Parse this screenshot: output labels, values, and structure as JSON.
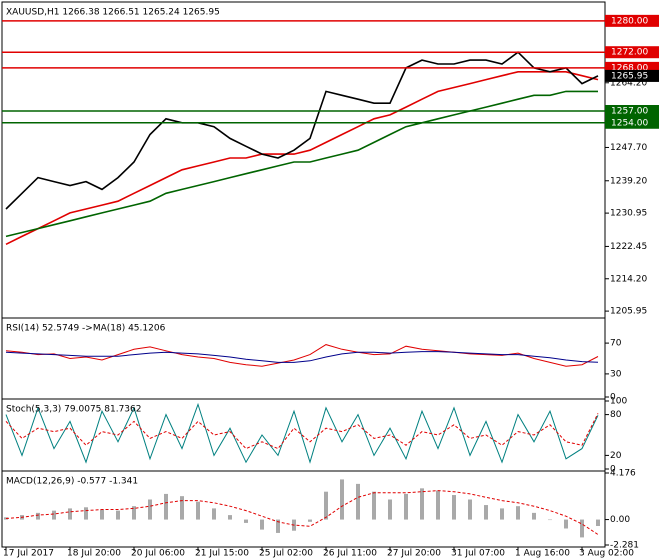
{
  "chart_data": [
    {
      "type": "line",
      "title": "XAUUSD,H1  1266.38 1266.51 1265.24 1265.95",
      "categories": [
        "17 Jul 2017",
        null,
        null,
        null,
        "18 Jul 20:00",
        null,
        null,
        null,
        "20 Jul 06:00",
        null,
        null,
        null,
        "21 Jul 15:00",
        null,
        null,
        null,
        "25 Jul 02:00",
        null,
        null,
        null,
        "26 Jul 11:00",
        null,
        null,
        null,
        "27 Jul 20:00",
        null,
        null,
        null,
        "31 Jul 07:00",
        null,
        null,
        null,
        "1 Aug 16:00",
        null,
        null,
        null,
        "3 Aug 02:00",
        null
      ],
      "series": [
        {
          "color": "#e00000",
          "style": "line",
          "values": [
            1223,
            1225,
            1227,
            1229,
            1231,
            1232,
            1233,
            1234,
            1236,
            1238,
            1240,
            1242,
            1243,
            1244,
            1245,
            1245,
            1246,
            1246,
            1246,
            1247,
            1249,
            1251,
            1253,
            1255,
            1256,
            1258,
            1260,
            1262,
            1263,
            1264,
            1265,
            1266,
            1267,
            1267,
            1267,
            1267,
            1266,
            1265
          ]
        },
        {
          "color": "#006400",
          "style": "line",
          "values": [
            1225,
            1226,
            1227,
            1228,
            1229,
            1230,
            1231,
            1232,
            1233,
            1234,
            1236,
            1237,
            1238,
            1239,
            1240,
            1241,
            1242,
            1243,
            1244,
            1244,
            1245,
            1246,
            1247,
            1249,
            1251,
            1253,
            1254,
            1255,
            1256,
            1257,
            1258,
            1259,
            1260,
            1261,
            1261,
            1262,
            1262,
            1262
          ]
        },
        {
          "color": "#000000",
          "style": "line",
          "values": [
            1232,
            1236,
            1240,
            1239,
            1238,
            1239,
            1237,
            1240,
            1244,
            1251,
            1255,
            1254,
            1254,
            1253,
            1250,
            1248,
            1246,
            1245,
            1247,
            1250,
            1262,
            1261,
            1260,
            1259,
            1259,
            1268,
            1270,
            1269,
            1269,
            1270,
            1270,
            1269,
            1272,
            1268,
            1267,
            1268,
            1264,
            1265.95
          ]
        }
      ],
      "levels": [
        {
          "value": 1280,
          "label": "1280.00",
          "color": "#e00000"
        },
        {
          "value": 1272,
          "label": "1272.00",
          "color": "#e00000"
        },
        {
          "value": 1268,
          "label": "1268.00",
          "color": "#e00000"
        },
        {
          "value": 1257,
          "label": "1257.00",
          "color": "#006400"
        },
        {
          "value": 1254,
          "label": "1254.00",
          "color": "#006400"
        }
      ],
      "price_label": {
        "value": 1265.95,
        "label": "1265.95",
        "color": "#000000"
      },
      "ylim": [
        1204.7,
        1284.3
      ],
      "yticks": [
        {
          "value": 1264.2,
          "label": "1264.20"
        },
        {
          "value": 1247.7,
          "label": "1247.70"
        },
        {
          "value": 1239.2,
          "label": "1239.20"
        },
        {
          "value": 1230.95,
          "label": "1230.95"
        },
        {
          "value": 1222.45,
          "label": "1222.45"
        },
        {
          "value": 1214.2,
          "label": "1214.20"
        },
        1205.95
      ]
    },
    {
      "type": "line",
      "title": "RSI(14) 52.5749 ->MA(18) 45.1206",
      "series": [
        {
          "color": "#e00000",
          "style": "line",
          "values": [
            60,
            58,
            55,
            56,
            50,
            52,
            48,
            55,
            62,
            65,
            60,
            55,
            52,
            50,
            45,
            42,
            40,
            44,
            48,
            55,
            68,
            62,
            58,
            55,
            56,
            66,
            62,
            60,
            58,
            56,
            55,
            54,
            57,
            50,
            45,
            40,
            42,
            52.5749
          ]
        },
        {
          "color": "#00008b",
          "style": "line",
          "values": [
            58,
            57,
            56,
            55,
            54,
            53,
            53,
            53,
            55,
            57,
            58,
            57,
            56,
            54,
            52,
            49,
            47,
            45,
            45,
            47,
            52,
            56,
            58,
            58,
            57,
            58,
            59,
            59,
            58,
            57,
            56,
            55,
            55,
            53,
            51,
            48,
            46,
            45.1206
          ]
        }
      ],
      "ylim": [
        0,
        100
      ],
      "yticks": [
        70,
        30,
        0
      ]
    },
    {
      "type": "line",
      "title": "Stoch(5,3,3) 79.0075 81.7362",
      "series": [
        {
          "color": "#008080",
          "style": "line",
          "values": [
            80,
            20,
            90,
            30,
            70,
            10,
            85,
            40,
            90,
            15,
            80,
            30,
            95,
            20,
            60,
            10,
            50,
            20,
            85,
            10,
            90,
            40,
            80,
            20,
            60,
            15,
            85,
            30,
            90,
            20,
            70,
            10,
            80,
            40,
            85,
            15,
            30,
            79.0075
          ]
        },
        {
          "color": "#e00000",
          "style": "dashed",
          "values": [
            70,
            45,
            60,
            55,
            60,
            35,
            55,
            50,
            70,
            45,
            55,
            45,
            70,
            50,
            55,
            30,
            40,
            30,
            60,
            40,
            60,
            55,
            65,
            45,
            50,
            35,
            55,
            50,
            65,
            45,
            50,
            35,
            55,
            50,
            65,
            40,
            35,
            81.7362
          ]
        }
      ],
      "ylim": [
        0,
        100
      ],
      "yticks": [
        100,
        80,
        20,
        0
      ]
    },
    {
      "type": "bar",
      "title": "MACD(12,26,9) -0.577 -1.341",
      "series": [
        {
          "color": "#a9a9a9",
          "style": "bars",
          "values": [
            0.2,
            0.4,
            0.6,
            0.8,
            1,
            1.1,
            0.9,
            0.8,
            1.2,
            1.8,
            2.3,
            2.1,
            1.6,
            1.0,
            0.4,
            -0.3,
            -0.9,
            -1.2,
            -1.0,
            -0.2,
            2.5,
            3.6,
            3.2,
            2.5,
            1.8,
            2.3,
            2.8,
            2.6,
            2.2,
            1.8,
            1.3,
            1.0,
            1.2,
            0.6,
            0.0,
            -0.8,
            -1.6,
            -0.577
          ]
        },
        {
          "color": "#e00000",
          "style": "dashed",
          "values": [
            0.1,
            0.2,
            0.4,
            0.5,
            0.7,
            0.8,
            0.9,
            0.9,
            1.0,
            1.2,
            1.5,
            1.7,
            1.7,
            1.5,
            1.2,
            0.8,
            0.3,
            -0.2,
            -0.5,
            -0.6,
            0.2,
            1.2,
            2.0,
            2.4,
            2.4,
            2.4,
            2.5,
            2.6,
            2.5,
            2.3,
            2.0,
            1.7,
            1.5,
            1.2,
            0.8,
            0.3,
            -0.4,
            -1.341
          ]
        }
      ],
      "ylim": [
        -2.281,
        4.176
      ],
      "yticks": [
        4.176,
        {
          "value": 0,
          "label": "0.00"
        },
        -2.281
      ]
    }
  ]
}
